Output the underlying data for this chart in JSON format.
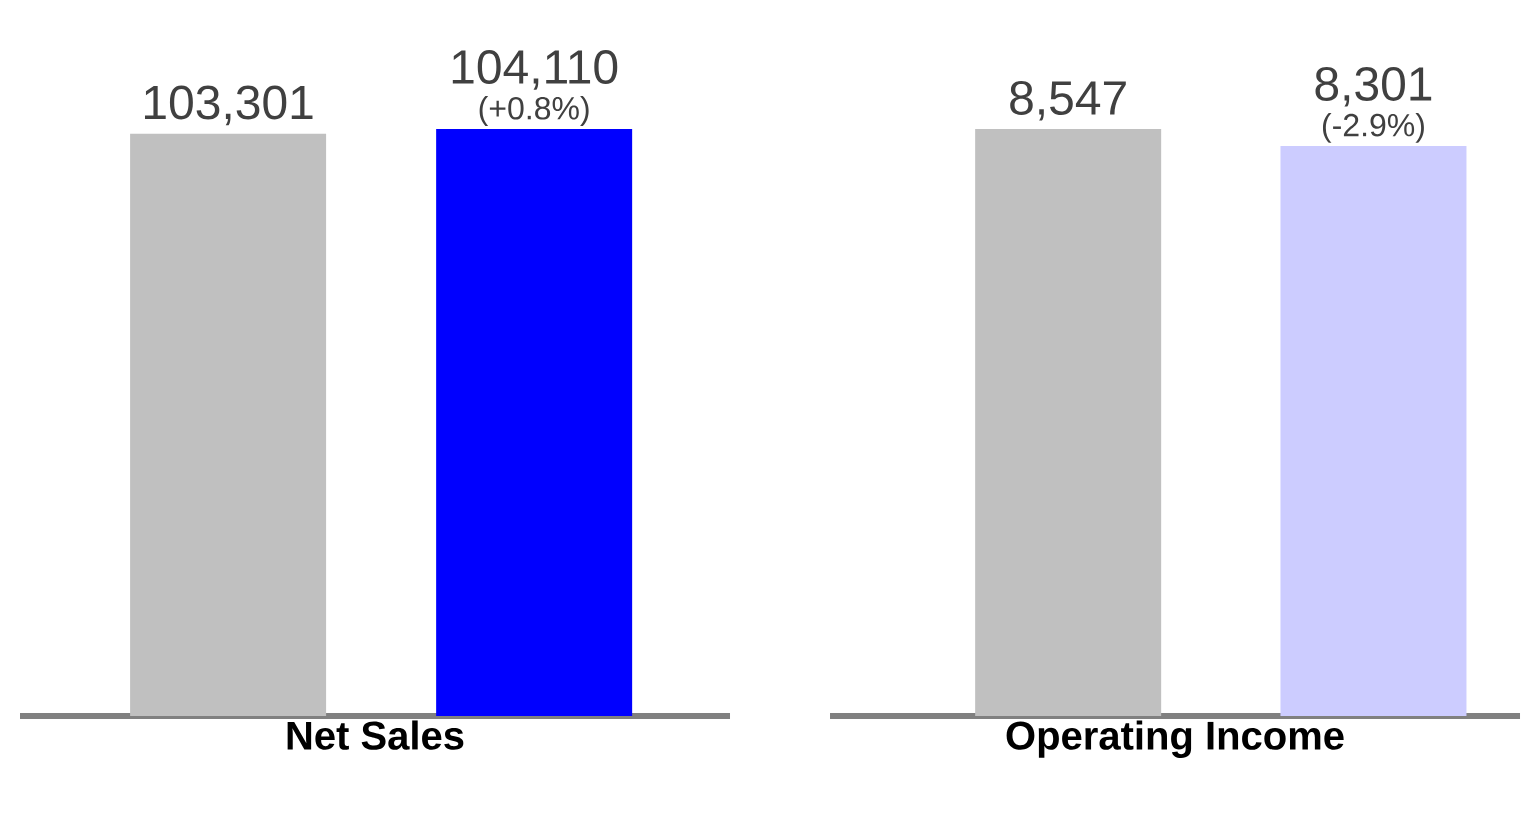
{
  "chart_data": [
    {
      "type": "bar",
      "xlabel": "Net Sales",
      "categories": [
        null,
        null
      ],
      "values": [
        103301,
        104110
      ],
      "colors": [
        "#c0c0c0",
        "#0000ff"
      ],
      "value_labels": [
        "103,301",
        "104,110"
      ],
      "annotations": [
        "(+0.8%)"
      ]
    },
    {
      "type": "bar",
      "xlabel": "Operating Income",
      "categories": [
        null,
        null
      ],
      "values": [
        8547,
        8301
      ],
      "colors": [
        "#c0c0c0",
        "#ccccff"
      ],
      "value_labels": [
        "8,547",
        "8,301"
      ],
      "annotations": [
        "(-2.9%)"
      ]
    }
  ]
}
